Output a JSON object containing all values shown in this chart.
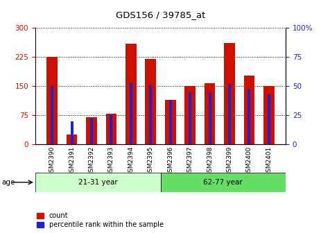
{
  "title": "GDS156 / 39785_at",
  "samples": [
    "GSM2390",
    "GSM2391",
    "GSM2392",
    "GSM2393",
    "GSM2394",
    "GSM2395",
    "GSM2396",
    "GSM2397",
    "GSM2398",
    "GSM2399",
    "GSM2400",
    "GSM2401"
  ],
  "counts": [
    226,
    25,
    70,
    80,
    260,
    220,
    115,
    150,
    157,
    262,
    178,
    150
  ],
  "percentiles": [
    50,
    20,
    23,
    26,
    53,
    51,
    38,
    45,
    45,
    52,
    48,
    43
  ],
  "groups": [
    {
      "label": "21-31 year",
      "start": 0,
      "end": 5
    },
    {
      "label": "62-77 year",
      "start": 6,
      "end": 11
    }
  ],
  "group_color_light": "#ccffcc",
  "group_color_dark": "#66dd66",
  "bar_color": "#cc1100",
  "percentile_color": "#2222cc",
  "ylim_left": [
    0,
    300
  ],
  "ylim_right": [
    0,
    100
  ],
  "yticks_left": [
    0,
    75,
    150,
    225,
    300
  ],
  "yticks_right": [
    0,
    25,
    50,
    75,
    100
  ],
  "ylabel_left_color": "#cc1100",
  "ylabel_right_color": "#2222cc",
  "background_color": "#ffffff",
  "bar_width": 0.55,
  "age_label": "age"
}
